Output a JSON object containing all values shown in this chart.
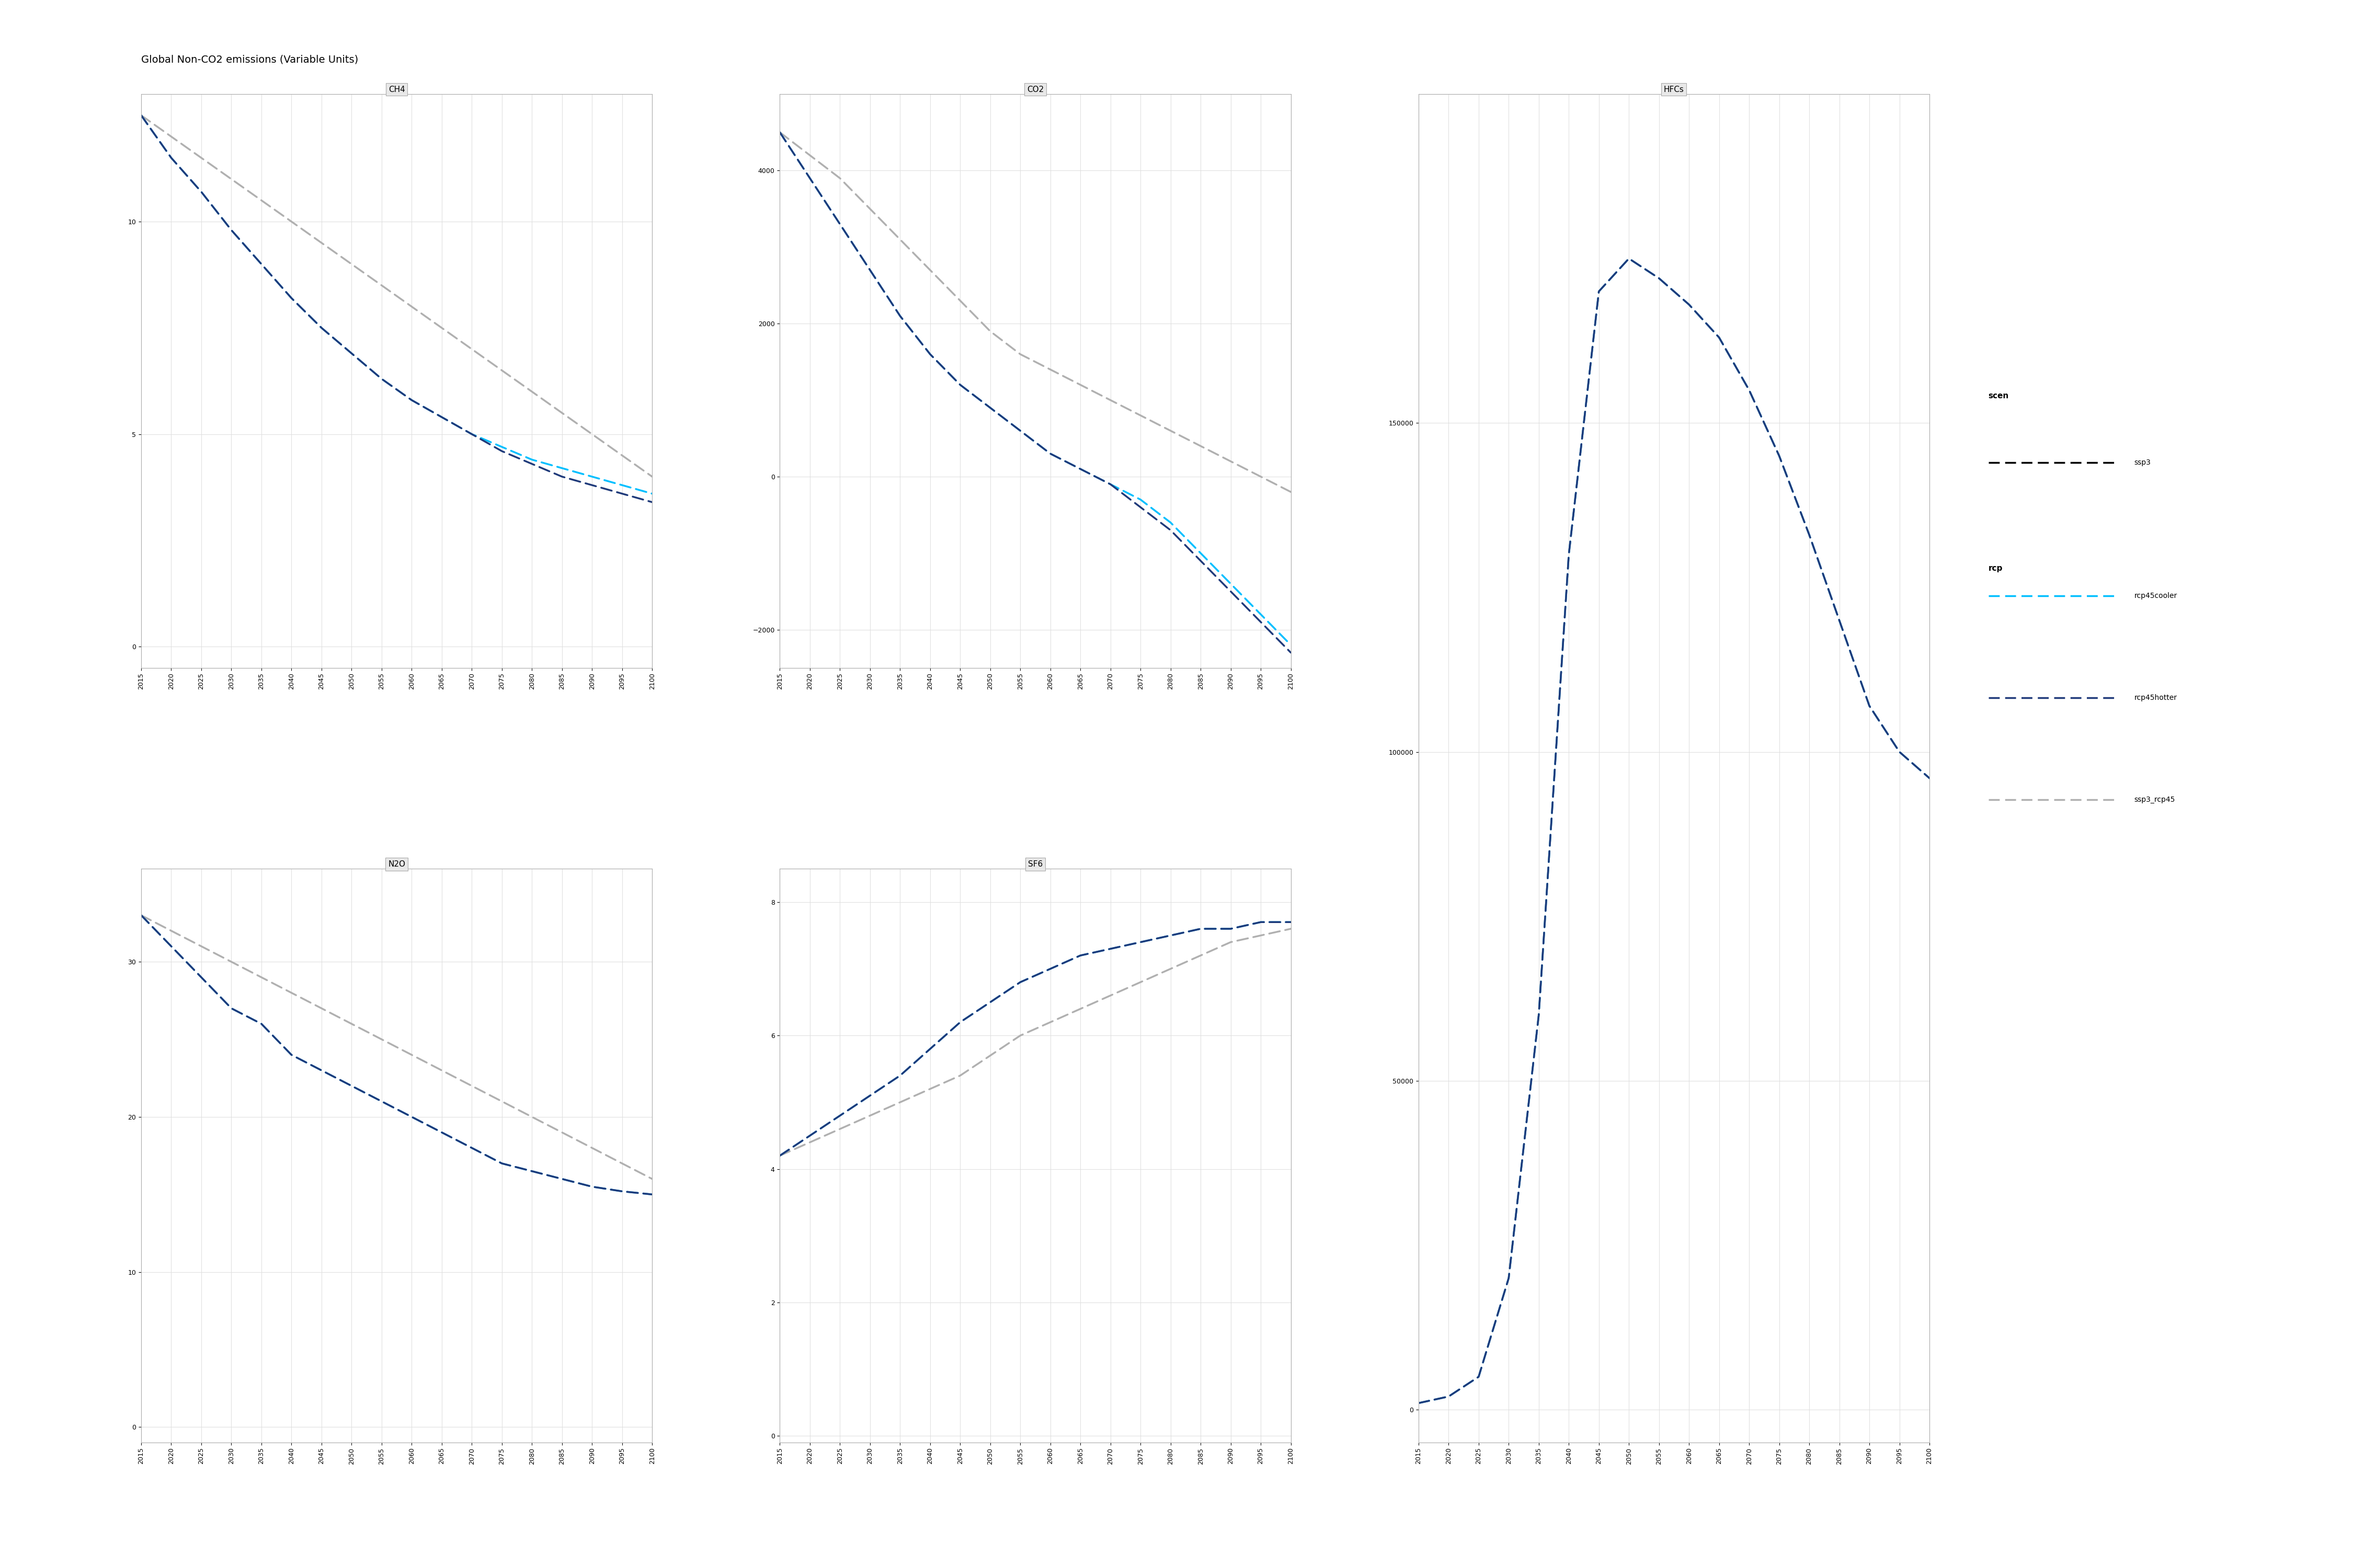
{
  "title": "Global Non-CO2 emissions (Variable Units)",
  "years": [
    2015,
    2020,
    2025,
    2030,
    2035,
    2040,
    2045,
    2050,
    2055,
    2060,
    2065,
    2070,
    2075,
    2080,
    2085,
    2090,
    2095,
    2100
  ],
  "subplots": {
    "CH4": {
      "title": "CH4",
      "ylim": [
        -0.5,
        13
      ],
      "yticks": [
        0,
        5,
        10
      ],
      "rcp45cooler": [
        12.5,
        11.5,
        10.7,
        9.8,
        9.0,
        8.2,
        7.5,
        6.9,
        6.3,
        5.8,
        5.4,
        5.0,
        4.7,
        4.4,
        4.2,
        4.0,
        3.8,
        3.6
      ],
      "rcp45hotter": [
        12.5,
        11.5,
        10.7,
        9.8,
        9.0,
        8.2,
        7.5,
        6.9,
        6.3,
        5.8,
        5.4,
        5.0,
        4.6,
        4.3,
        4.0,
        3.8,
        3.6,
        3.4
      ],
      "ssp3_rcp45": [
        12.5,
        12.0,
        11.5,
        11.0,
        10.5,
        10.0,
        9.5,
        9.0,
        8.5,
        8.0,
        7.5,
        7.0,
        6.5,
        6.0,
        5.5,
        5.0,
        4.5,
        4.0
      ]
    },
    "CO2": {
      "title": "CO2",
      "ylim": [
        -2500,
        5000
      ],
      "yticks": [
        -2000,
        0,
        2000,
        4000
      ],
      "rcp45cooler": [
        4500,
        3900,
        3300,
        2700,
        2100,
        1600,
        1200,
        900,
        600,
        300,
        100,
        -100,
        -300,
        -600,
        -1000,
        -1400,
        -1800,
        -2200
      ],
      "rcp45hotter": [
        4500,
        3900,
        3300,
        2700,
        2100,
        1600,
        1200,
        900,
        600,
        300,
        100,
        -100,
        -400,
        -700,
        -1100,
        -1500,
        -1900,
        -2300
      ],
      "ssp3_rcp45": [
        4500,
        4200,
        3900,
        3500,
        3100,
        2700,
        2300,
        1900,
        1600,
        1400,
        1200,
        1000,
        800,
        600,
        400,
        200,
        0,
        -200
      ]
    },
    "HFCs": {
      "title": "HFCs",
      "ylim": [
        -5000,
        200000
      ],
      "yticks": [
        0,
        50000,
        100000,
        150000
      ],
      "rcp45cooler": [
        1000,
        2000,
        5000,
        20000,
        60000,
        130000,
        170000,
        175000,
        172000,
        168000,
        163000,
        155000,
        145000,
        133000,
        120000,
        107000,
        100000,
        96000
      ],
      "rcp45hotter": [
        1000,
        2000,
        5000,
        20000,
        60000,
        130000,
        170000,
        175000,
        172000,
        168000,
        163000,
        155000,
        145000,
        133000,
        120000,
        107000,
        100000,
        96000
      ],
      "ssp3_rcp45": [
        1000,
        2000,
        5000,
        20000,
        60000,
        130000,
        170000,
        175000,
        172000,
        168000,
        163000,
        155000,
        145000,
        133000,
        120000,
        107000,
        100000,
        96000
      ]
    },
    "N2O": {
      "title": "N2O",
      "ylim": [
        -1,
        36
      ],
      "yticks": [
        0,
        10,
        20,
        30
      ],
      "rcp45cooler": [
        33,
        31,
        29,
        27,
        26,
        24,
        23,
        22,
        21,
        20,
        19,
        18,
        17,
        16.5,
        16,
        15.5,
        15.2,
        15.0
      ],
      "rcp45hotter": [
        33,
        31,
        29,
        27,
        26,
        24,
        23,
        22,
        21,
        20,
        19,
        18,
        17,
        16.5,
        16,
        15.5,
        15.2,
        15.0
      ],
      "ssp3_rcp45": [
        33,
        32,
        31,
        30,
        29,
        28,
        27,
        26,
        25,
        24,
        23,
        22,
        21,
        20,
        19,
        18,
        17,
        16
      ]
    },
    "SF6": {
      "title": "SF6",
      "ylim": [
        -0.1,
        8.5
      ],
      "yticks": [
        0,
        2,
        4,
        6,
        8
      ],
      "rcp45cooler": [
        4.2,
        4.5,
        4.8,
        5.1,
        5.4,
        5.8,
        6.2,
        6.5,
        6.8,
        7.0,
        7.2,
        7.3,
        7.4,
        7.5,
        7.6,
        7.6,
        7.7,
        7.7
      ],
      "rcp45hotter": [
        4.2,
        4.5,
        4.8,
        5.1,
        5.4,
        5.8,
        6.2,
        6.5,
        6.8,
        7.0,
        7.2,
        7.3,
        7.4,
        7.5,
        7.6,
        7.6,
        7.7,
        7.7
      ],
      "ssp3_rcp45": [
        4.2,
        4.4,
        4.6,
        4.8,
        5.0,
        5.2,
        5.4,
        5.7,
        6.0,
        6.2,
        6.4,
        6.6,
        6.8,
        7.0,
        7.2,
        7.4,
        7.5,
        7.6
      ]
    }
  },
  "colors": {
    "rcp45cooler": "#00BFFF",
    "rcp45hotter": "#1F3A7A",
    "ssp3_rcp45": "#B0B0B0"
  },
  "line_widths": {
    "rcp45cooler": 2.5,
    "rcp45hotter": 2.5,
    "ssp3_rcp45": 2.5
  },
  "dash_styles": {
    "rcp45cooler": [
      6,
      3
    ],
    "rcp45hotter": [
      6,
      3
    ],
    "ssp3_rcp45": [
      6,
      3
    ]
  },
  "background_color": "#FFFFFF",
  "panel_bg": "#FFFFFF",
  "grid_color": "#E0E0E0"
}
